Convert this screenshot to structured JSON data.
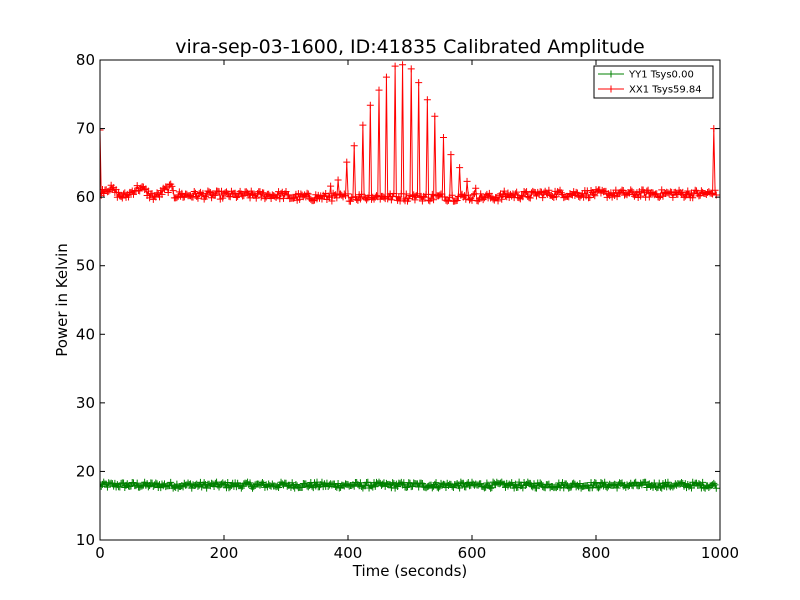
{
  "chart_data": {
    "type": "line",
    "title": "vira-sep-03-1600, ID:41835 Calibrated Amplitude",
    "xlabel": "Time (seconds)",
    "ylabel": "Power in Kelvin",
    "xlim": [
      0,
      1000
    ],
    "ylim": [
      10,
      80
    ],
    "xticks": [
      "0",
      "200",
      "400",
      "600",
      "800",
      "1000"
    ],
    "yticks": [
      "10",
      "20",
      "30",
      "40",
      "50",
      "60",
      "70",
      "80"
    ],
    "grid": false,
    "legend_position": "top-right",
    "series": [
      {
        "name": "YY1 Tsys0.00",
        "color": "#008000",
        "marker": "plus",
        "sample_interval_s": 2,
        "baseline": 18.0,
        "description_values": {
          "mean": 18.0,
          "min": 17.5,
          "max": 18.5
        }
      },
      {
        "name": "XX1 Tsys59.84",
        "color": "#ff0000",
        "marker": "plus",
        "sample_interval_s": 2,
        "baseline": 60.3,
        "peaks": [
          {
            "x": 0,
            "y": 69.8
          },
          {
            "x": 371,
            "y": 61.6
          },
          {
            "x": 384,
            "y": 62.5
          },
          {
            "x": 397,
            "y": 65.1
          },
          {
            "x": 410,
            "y": 67.5
          },
          {
            "x": 423,
            "y": 70.5
          },
          {
            "x": 436,
            "y": 73.4
          },
          {
            "x": 449,
            "y": 75.6
          },
          {
            "x": 462,
            "y": 77.5
          },
          {
            "x": 475,
            "y": 79.1
          },
          {
            "x": 488,
            "y": 79.3
          },
          {
            "x": 501,
            "y": 78.7
          },
          {
            "x": 514,
            "y": 76.7
          },
          {
            "x": 527,
            "y": 74.2
          },
          {
            "x": 540,
            "y": 71.8
          },
          {
            "x": 553,
            "y": 68.7
          },
          {
            "x": 566,
            "y": 66.2
          },
          {
            "x": 579,
            "y": 64.3
          },
          {
            "x": 592,
            "y": 62.3
          },
          {
            "x": 605,
            "y": 61.3
          },
          {
            "x": 990,
            "y": 70.0
          }
        ]
      }
    ]
  }
}
